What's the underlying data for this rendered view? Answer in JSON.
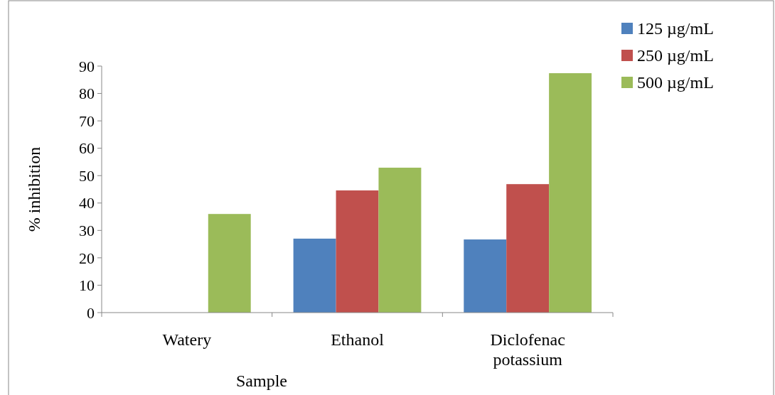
{
  "chart_data": {
    "type": "bar",
    "xlabel": "Sample",
    "ylabel": "% inhibition",
    "categories": [
      "Watery",
      "Ethanol",
      "Diclofenac potassium"
    ],
    "series": [
      {
        "name": "125 µg/mL",
        "color": "#4f81bd",
        "values": [
          0,
          27.0,
          26.7
        ]
      },
      {
        "name": "250 µg/mL",
        "color": "#c0504d",
        "values": [
          0,
          44.6,
          46.9
        ]
      },
      {
        "name": "500 µg/mL",
        "color": "#9bbb59",
        "values": [
          36.0,
          52.9,
          87.4
        ]
      }
    ],
    "ylim": [
      0,
      90
    ],
    "yticks": [
      0,
      10,
      20,
      30,
      40,
      50,
      60,
      70,
      80,
      90
    ],
    "legend": "top right",
    "grid": false
  }
}
